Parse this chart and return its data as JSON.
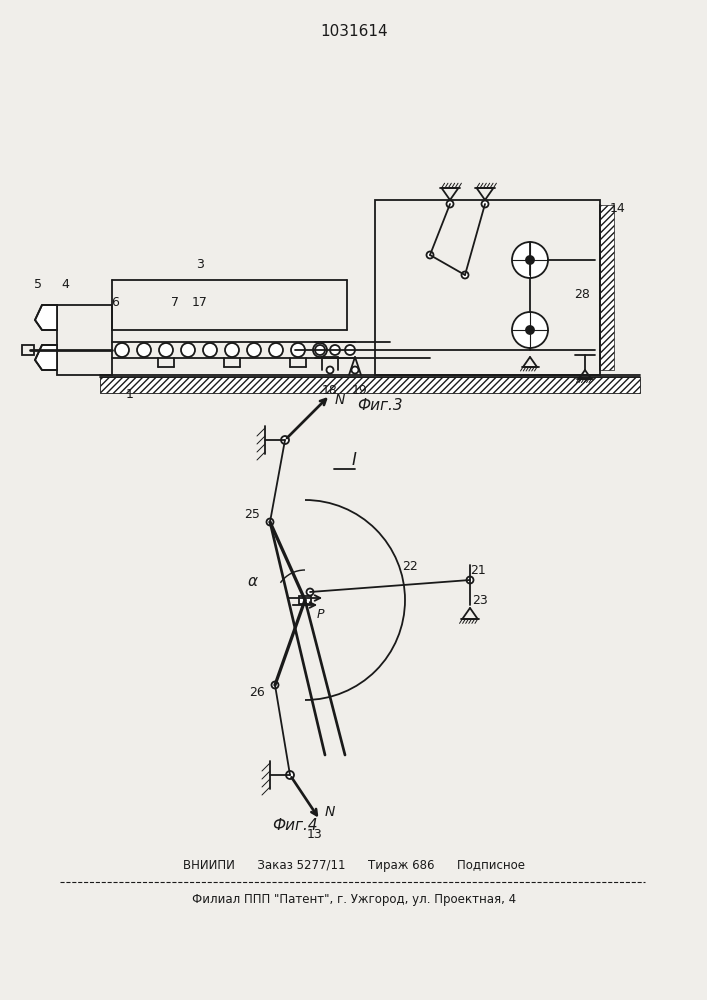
{
  "patent_number": "1031614",
  "fig3_label": "Фиг.3",
  "fig4_label": "Фиг.4",
  "fig1_label": "I",
  "footer_line1": "ВНИИПИ      Заказ 5277/11      Тираж 686      Подписное",
  "footer_line2": "Филиал ППП \"Патент\", г. Ужгород, ул. Проектная, 4",
  "bg_color": "#f0eeea",
  "line_color": "#1a1a1a"
}
